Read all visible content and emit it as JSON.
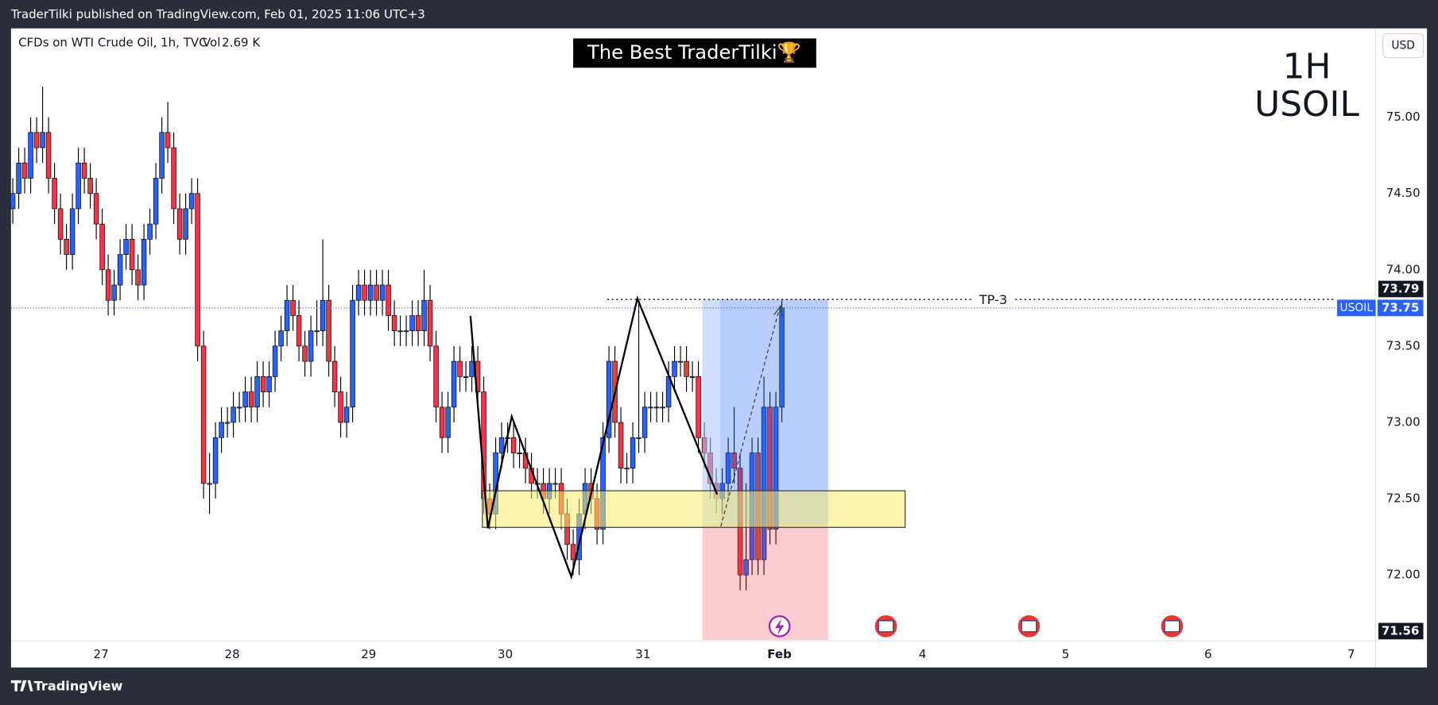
{
  "header": {
    "publisher": "TraderTilki published on TradingView.com, Feb 01, 2025 11:06 UTC+3"
  },
  "footer": {
    "brand": "TradingView"
  },
  "chart_data": {
    "type": "candlestick",
    "symbol": "CFDs on WTI Crude Oil, 1h, TVC",
    "volume": {
      "label": "Vol",
      "value": "2.69 K"
    },
    "banner": "The Best TraderTilki🏆",
    "timeframe": "1H",
    "ticker": "USOIL",
    "currency": "USD",
    "open": [
      74.4,
      74.5,
      74.7,
      74.6,
      74.9,
      74.8,
      74.9,
      74.6,
      74.4,
      74.2,
      74.1,
      74.4,
      74.7,
      74.6,
      74.5,
      74.3,
      74.0,
      73.8,
      73.9,
      74.1,
      74.2,
      74.0,
      73.9,
      74.2,
      74.3,
      74.6,
      74.9,
      74.8,
      74.4,
      74.2,
      74.4,
      74.5,
      73.5,
      72.6,
      72.6,
      72.9,
      73.0,
      73.0,
      73.1,
      73.1,
      73.2,
      73.1,
      73.3,
      73.2,
      73.3,
      73.5,
      73.6,
      73.8,
      73.7,
      73.5,
      73.4,
      73.6,
      73.6,
      73.8,
      73.4,
      73.2,
      73.0,
      73.1,
      73.8,
      73.9,
      73.8,
      73.9,
      73.8,
      73.9,
      73.7,
      73.6,
      73.6,
      73.6,
      73.7,
      73.6,
      73.8,
      73.5,
      73.1,
      72.9,
      73.1,
      73.4,
      73.3,
      73.3,
      73.4,
      73.2,
      72.5,
      72.4,
      72.8,
      72.9,
      72.9,
      72.8,
      72.8,
      72.7,
      72.6,
      72.6,
      72.5,
      72.6,
      72.6,
      72.4,
      72.2,
      72.1,
      72.4,
      72.6,
      72.5,
      72.3,
      72.9,
      73.4,
      73.0,
      72.7,
      72.7,
      72.9,
      72.9,
      73.1,
      73.1,
      73.1,
      73.1,
      73.3,
      73.4,
      73.4,
      73.3,
      73.3,
      72.9,
      72.8,
      72.6,
      72.5,
      72.6,
      72.8,
      72.7,
      72.0,
      72.1,
      72.8,
      72.1,
      73.1,
      72.3,
      73.1
    ],
    "high": [
      74.6,
      74.8,
      74.8,
      75.0,
      75.0,
      75.2,
      75.0,
      74.7,
      74.5,
      74.3,
      74.5,
      74.8,
      74.8,
      74.7,
      74.6,
      74.4,
      74.1,
      74.0,
      74.2,
      74.3,
      74.3,
      74.1,
      74.3,
      74.4,
      74.7,
      75.0,
      75.1,
      74.9,
      74.5,
      74.5,
      74.6,
      74.6,
      73.6,
      72.8,
      73.0,
      73.1,
      73.1,
      73.2,
      73.2,
      73.3,
      73.3,
      73.4,
      73.4,
      73.4,
      73.6,
      73.7,
      73.9,
      73.9,
      73.8,
      73.6,
      73.7,
      73.8,
      74.2,
      73.9,
      73.5,
      73.3,
      73.2,
      73.9,
      74.0,
      74.0,
      74.0,
      74.0,
      74.0,
      74.0,
      73.8,
      73.7,
      73.7,
      73.8,
      73.8,
      74.0,
      73.9,
      73.6,
      73.2,
      73.2,
      73.5,
      73.5,
      73.4,
      73.5,
      73.5,
      73.3,
      72.6,
      72.9,
      73.0,
      73.0,
      73.0,
      72.9,
      72.9,
      72.8,
      72.7,
      72.7,
      72.7,
      72.7,
      72.7,
      72.5,
      72.3,
      72.5,
      72.7,
      72.7,
      72.6,
      73.0,
      73.5,
      73.5,
      73.1,
      72.8,
      73.0,
      73.8,
      73.2,
      73.2,
      73.2,
      73.2,
      73.4,
      73.5,
      73.5,
      73.5,
      73.4,
      73.4,
      73.0,
      72.9,
      72.7,
      72.7,
      72.9,
      73.1,
      72.8,
      72.6,
      72.9,
      72.9,
      73.3,
      73.2,
      73.2,
      73.8
    ],
    "low": [
      74.3,
      74.4,
      74.5,
      74.5,
      74.7,
      74.7,
      74.5,
      74.3,
      74.1,
      74.0,
      74.0,
      74.3,
      74.5,
      74.4,
      74.2,
      73.9,
      73.7,
      73.7,
      73.8,
      74.0,
      73.9,
      73.8,
      73.8,
      74.1,
      74.2,
      74.5,
      74.7,
      74.3,
      74.1,
      74.1,
      74.3,
      73.4,
      72.5,
      72.4,
      72.5,
      72.8,
      72.9,
      72.9,
      73.0,
      73.0,
      73.0,
      73.0,
      73.1,
      73.1,
      73.2,
      73.4,
      73.5,
      73.6,
      73.4,
      73.3,
      73.3,
      73.5,
      73.5,
      73.3,
      73.1,
      72.9,
      72.9,
      73.0,
      73.7,
      73.7,
      73.7,
      73.7,
      73.7,
      73.6,
      73.5,
      73.5,
      73.5,
      73.5,
      73.5,
      73.5,
      73.4,
      73.0,
      72.8,
      72.8,
      73.0,
      73.2,
      73.2,
      73.2,
      73.1,
      72.4,
      72.3,
      72.3,
      72.7,
      72.8,
      72.7,
      72.7,
      72.6,
      72.5,
      72.5,
      72.4,
      72.4,
      72.5,
      72.3,
      72.1,
      72.0,
      72.0,
      72.3,
      72.4,
      72.2,
      72.2,
      72.8,
      72.9,
      72.6,
      72.6,
      72.6,
      72.8,
      72.8,
      73.0,
      73.0,
      73.0,
      73.0,
      73.2,
      73.3,
      73.2,
      73.2,
      72.8,
      72.7,
      72.5,
      72.4,
      72.4,
      72.5,
      72.6,
      71.9,
      71.9,
      72.0,
      72.0,
      72.0,
      72.2,
      72.2,
      73.0
    ],
    "close": [
      74.5,
      74.7,
      74.6,
      74.9,
      74.8,
      74.9,
      74.6,
      74.4,
      74.2,
      74.1,
      74.4,
      74.7,
      74.6,
      74.5,
      74.3,
      74.0,
      73.8,
      73.9,
      74.1,
      74.2,
      74.0,
      73.9,
      74.2,
      74.3,
      74.6,
      74.9,
      74.8,
      74.4,
      74.2,
      74.4,
      74.5,
      73.5,
      72.6,
      72.6,
      72.9,
      73.0,
      73.0,
      73.1,
      73.1,
      73.2,
      73.1,
      73.3,
      73.2,
      73.3,
      73.5,
      73.6,
      73.8,
      73.7,
      73.5,
      73.4,
      73.6,
      73.6,
      73.8,
      73.4,
      73.2,
      73.0,
      73.1,
      73.8,
      73.9,
      73.8,
      73.9,
      73.8,
      73.9,
      73.7,
      73.6,
      73.6,
      73.6,
      73.7,
      73.6,
      73.8,
      73.5,
      73.1,
      72.9,
      73.1,
      73.4,
      73.3,
      73.3,
      73.4,
      73.2,
      72.5,
      72.4,
      72.8,
      72.9,
      72.9,
      72.8,
      72.8,
      72.7,
      72.6,
      72.6,
      72.5,
      72.6,
      72.6,
      72.4,
      72.2,
      72.1,
      72.4,
      72.6,
      72.5,
      72.3,
      72.9,
      73.4,
      73.0,
      72.7,
      72.7,
      72.9,
      72.9,
      73.1,
      73.1,
      73.1,
      73.1,
      73.3,
      73.4,
      73.4,
      73.3,
      73.3,
      72.9,
      72.8,
      72.6,
      72.5,
      72.6,
      72.8,
      72.7,
      72.0,
      72.1,
      72.8,
      72.1,
      73.1,
      72.3,
      73.1,
      73.75
    ],
    "colors": {
      "up": "#2962ff",
      "down": "#f23645",
      "wick": "#000000"
    },
    "xlim": [
      -0.3,
      228.6
    ],
    "xticks": [
      {
        "value": 14.8,
        "label": "27"
      },
      {
        "value": 36.8,
        "label": "28"
      },
      {
        "value": 59.7,
        "label": "29"
      },
      {
        "value": 82.6,
        "label": "30"
      },
      {
        "value": 105.7,
        "label": "31"
      },
      {
        "value": 128.6,
        "label": "Feb"
      },
      {
        "value": 152.6,
        "label": "4"
      },
      {
        "value": 176.6,
        "label": "5"
      },
      {
        "value": 200.5,
        "label": "6"
      },
      {
        "value": 224.5,
        "label": "7"
      }
    ],
    "ylim": [
      71.5,
      75.6
    ],
    "yticks": [
      {
        "value": 72,
        "label": "72.00"
      },
      {
        "value": 72.5,
        "label": "72.50"
      },
      {
        "value": 73,
        "label": "73.00"
      },
      {
        "value": 73.5,
        "label": "73.50"
      },
      {
        "value": 74,
        "label": "74.00"
      },
      {
        "value": 74.5,
        "label": "74.50"
      },
      {
        "value": 75,
        "label": "75.00"
      }
    ],
    "grid": false,
    "last_price": {
      "name": "USOIL",
      "value": 73.75,
      "color": "#2962ff"
    },
    "price_labels": [
      73.79,
      71.56
    ],
    "annotation": "TP-3"
  }
}
